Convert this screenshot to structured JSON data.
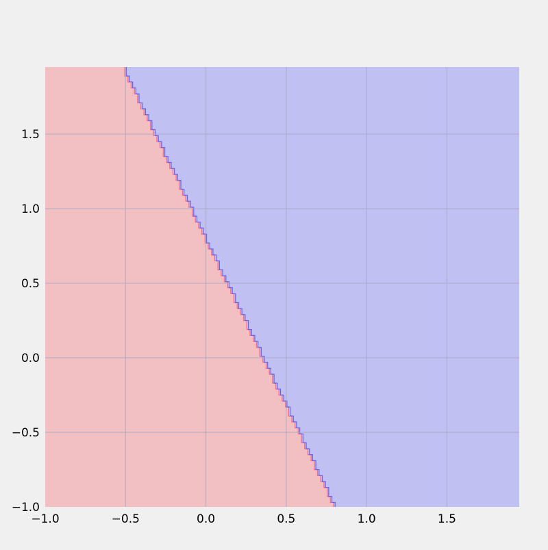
{
  "chart_data": {
    "type": "heatmap",
    "title": "",
    "xlabel": "",
    "ylabel": "",
    "xlim": [
      -1.0,
      1.95
    ],
    "ylim": [
      -1.0,
      1.95
    ],
    "x_ticks": [
      "−1.0",
      "−0.5",
      "0.0",
      "0.5",
      "1.0",
      "1.5"
    ],
    "x_tick_values": [
      -1.0,
      -0.5,
      0.0,
      0.5,
      1.0,
      1.5
    ],
    "y_ticks": [
      "−1.0",
      "−0.5",
      "0.0",
      "0.5",
      "1.0",
      "1.5"
    ],
    "y_tick_values": [
      -1.0,
      -0.5,
      0.0,
      0.5,
      1.0,
      1.5
    ],
    "grid": true,
    "decision_boundary": {
      "points": [
        [
          -0.51,
          1.95
        ],
        [
          0.81,
          -1.0
        ]
      ],
      "step": 0.02
    },
    "regions": [
      {
        "name": "left-of-boundary",
        "color": "#f2c0c3"
      },
      {
        "name": "right-of-boundary",
        "color": "#c0c0f2"
      }
    ],
    "colors": {
      "background": "#f0f0f0",
      "grid": "#a8a8c8",
      "red_contour": "#ff7070",
      "blue_contour": "#6060ff",
      "tick_text": "#000000"
    }
  }
}
